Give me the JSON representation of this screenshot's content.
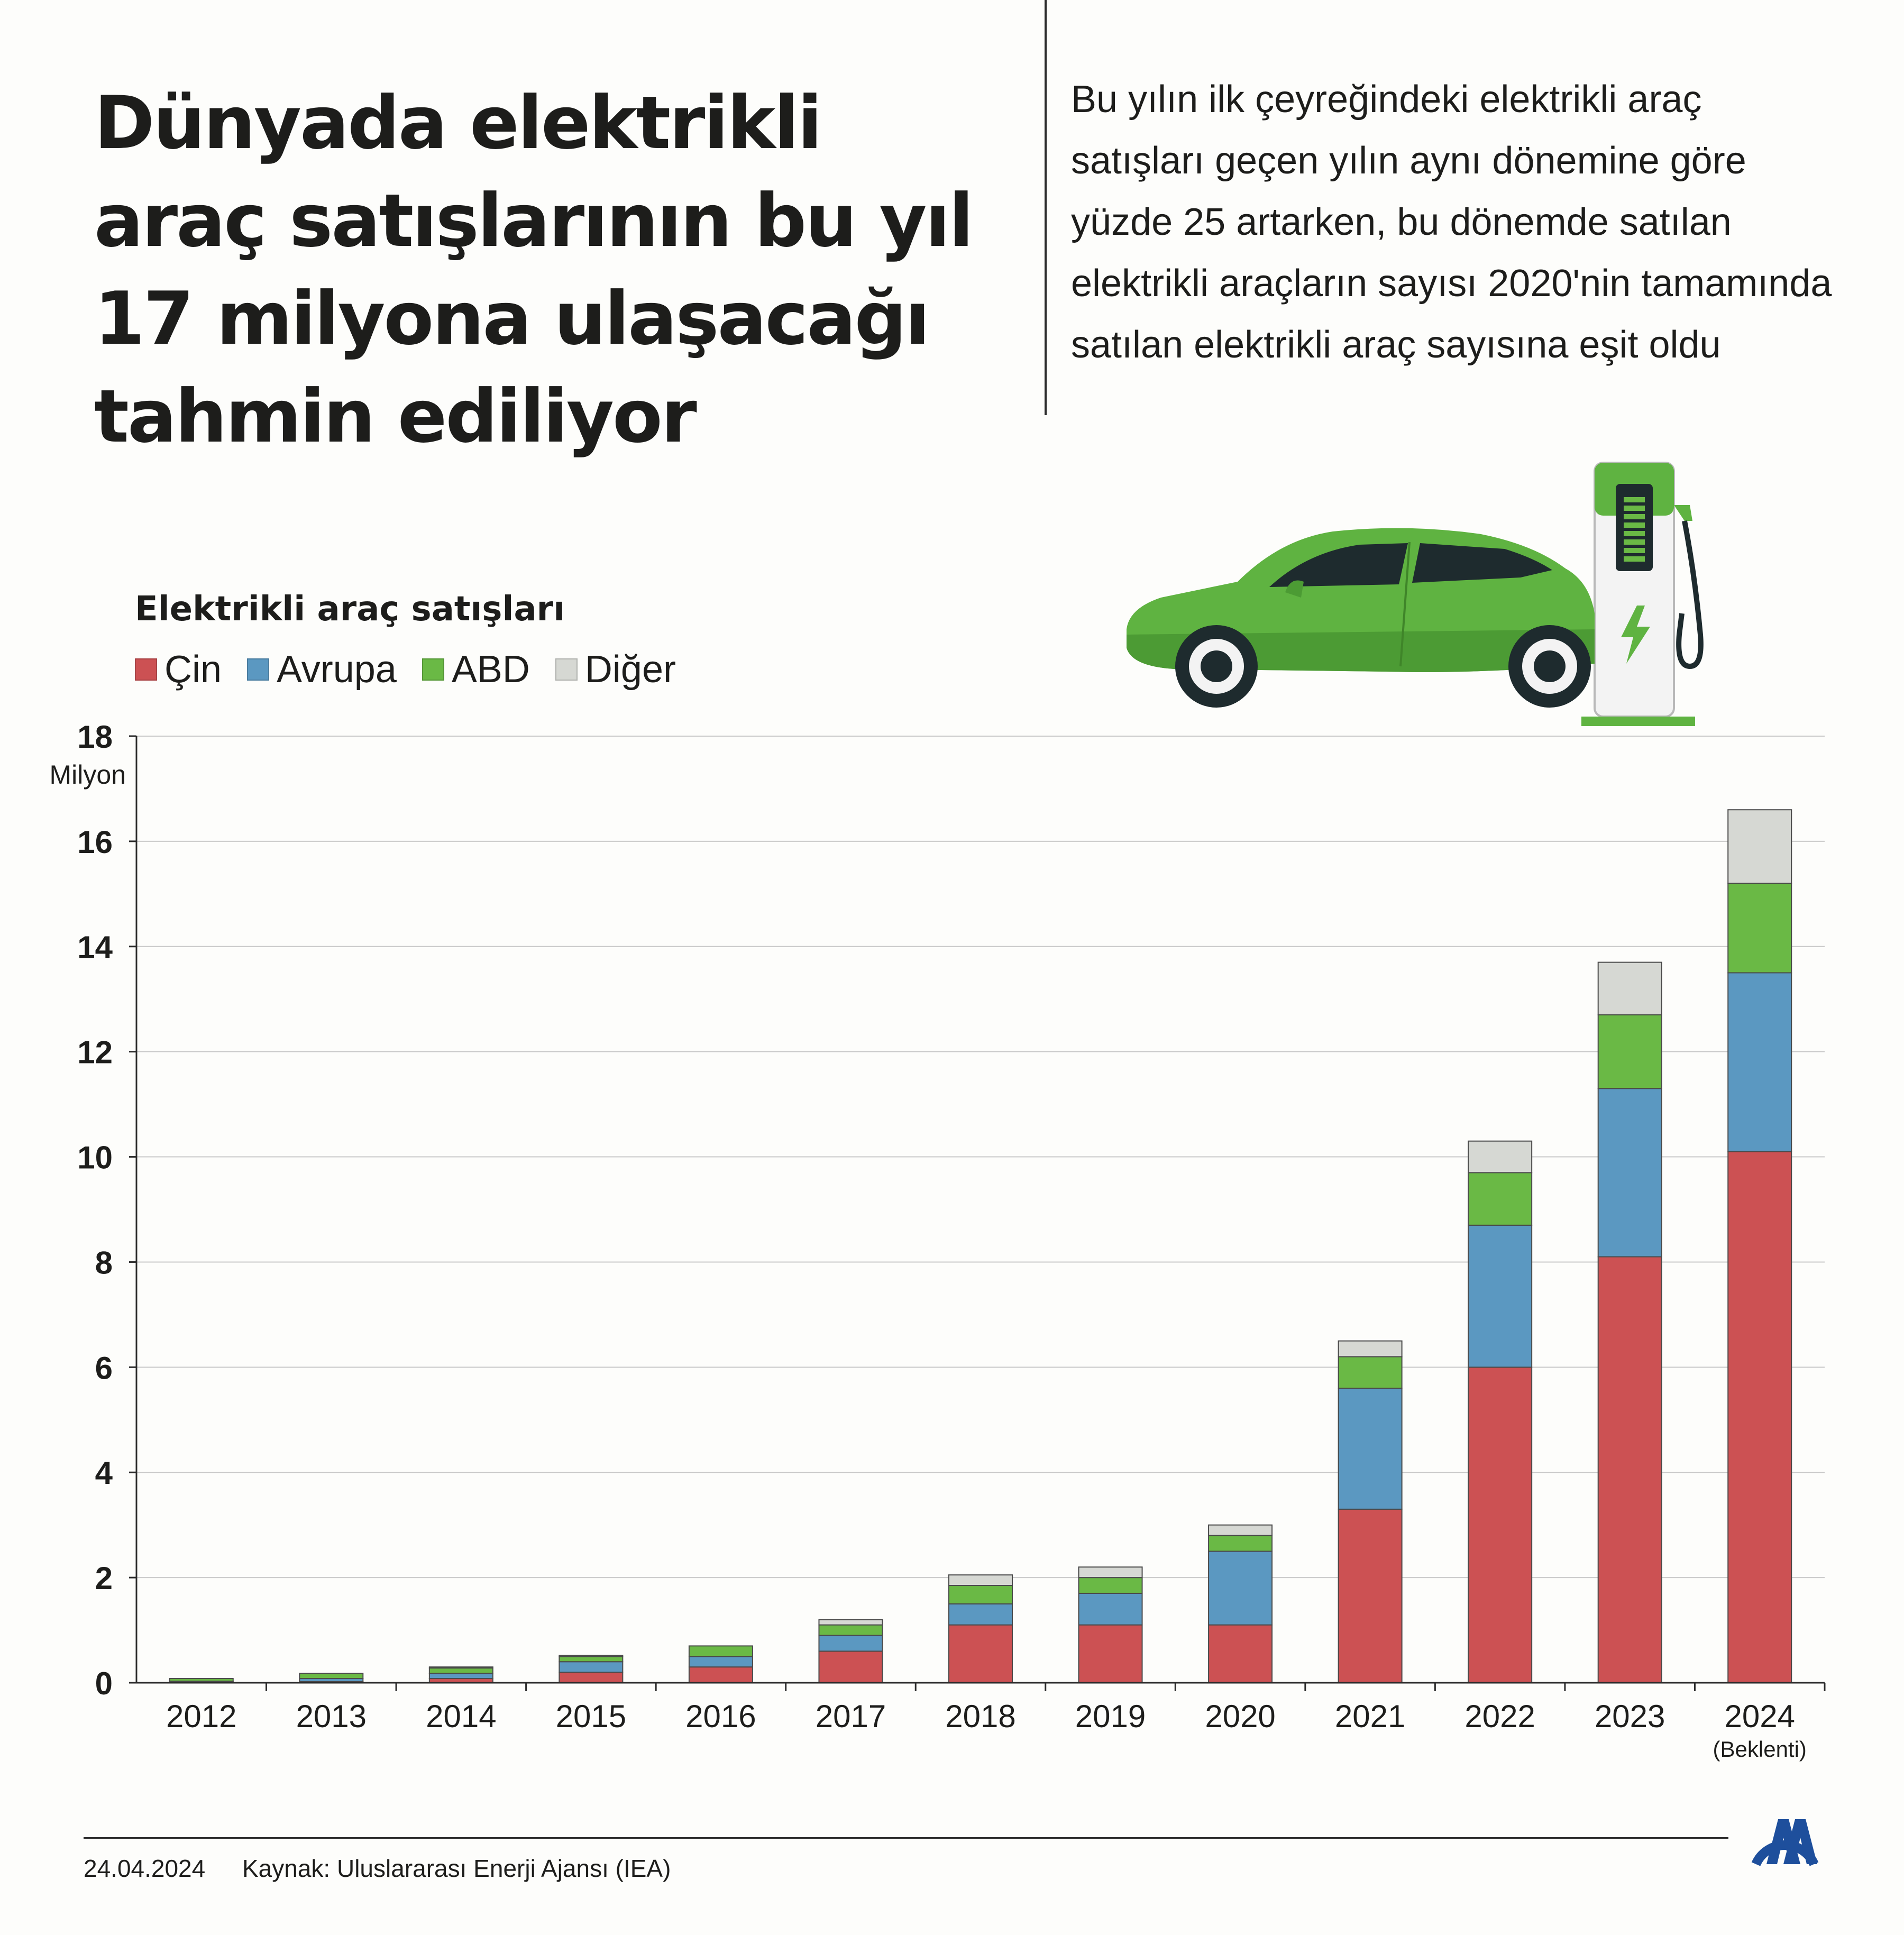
{
  "header": {
    "title": "Dünyada elektrikli araç satışlarının bu yıl 17 milyona ulaşacağı tahmin ediliyor",
    "description": "Bu yılın ilk çeyreğindeki elektrikli araç satışları geçen yılın aynı dönemine göre yüzde 25 artarken, bu dönemde satılan elektrikli araçların sayısı 2020'nin tamamında satılan elektrikli araç sayısına eşit oldu"
  },
  "colors": {
    "cin": "#cc5153",
    "avrupa": "#5b98c1",
    "abd": "#6ab945",
    "diger": "#d6d8d3",
    "car_green": "#5fb341",
    "aa_blue": "#1e4f9c"
  },
  "chart_data": {
    "type": "bar",
    "stacked": true,
    "title": "Elektrikli araç satışları",
    "ylabel": "Milyon",
    "ylim": [
      0,
      18
    ],
    "yticks": [
      0,
      2,
      4,
      6,
      8,
      10,
      12,
      14,
      16,
      18
    ],
    "grid": true,
    "legend_placement": "top-left",
    "categories": [
      "2012",
      "2013",
      "2014",
      "2015",
      "2016",
      "2017",
      "2018",
      "2019",
      "2020",
      "2021",
      "2022",
      "2023",
      "2024"
    ],
    "category_notes": {
      "2024": "(Beklenti)"
    },
    "series": [
      {
        "name": "Çin",
        "color": "#cc5153",
        "values": [
          0.01,
          0.02,
          0.08,
          0.2,
          0.3,
          0.6,
          1.1,
          1.1,
          1.1,
          3.3,
          6.0,
          8.1,
          10.1
        ]
      },
      {
        "name": "Avrupa",
        "color": "#5b98c1",
        "values": [
          0.02,
          0.06,
          0.1,
          0.2,
          0.2,
          0.3,
          0.4,
          0.6,
          1.4,
          2.3,
          2.7,
          3.2,
          3.4
        ]
      },
      {
        "name": "ABD",
        "color": "#6ab945",
        "values": [
          0.05,
          0.1,
          0.1,
          0.1,
          0.2,
          0.2,
          0.35,
          0.3,
          0.3,
          0.6,
          1.0,
          1.4,
          1.7
        ]
      },
      {
        "name": "Diğer",
        "color": "#d6d8d3",
        "values": [
          0.0,
          0.0,
          0.02,
          0.02,
          0.0,
          0.1,
          0.2,
          0.2,
          0.2,
          0.3,
          0.6,
          1.0,
          1.4
        ]
      }
    ]
  },
  "footer": {
    "date": "24.04.2024",
    "source": "Kaynak: Uluslararası Enerji Ajansı (IEA)"
  },
  "icons": {
    "illustration": "electric-car-charging-icon",
    "logo": "aa-logo-icon"
  }
}
